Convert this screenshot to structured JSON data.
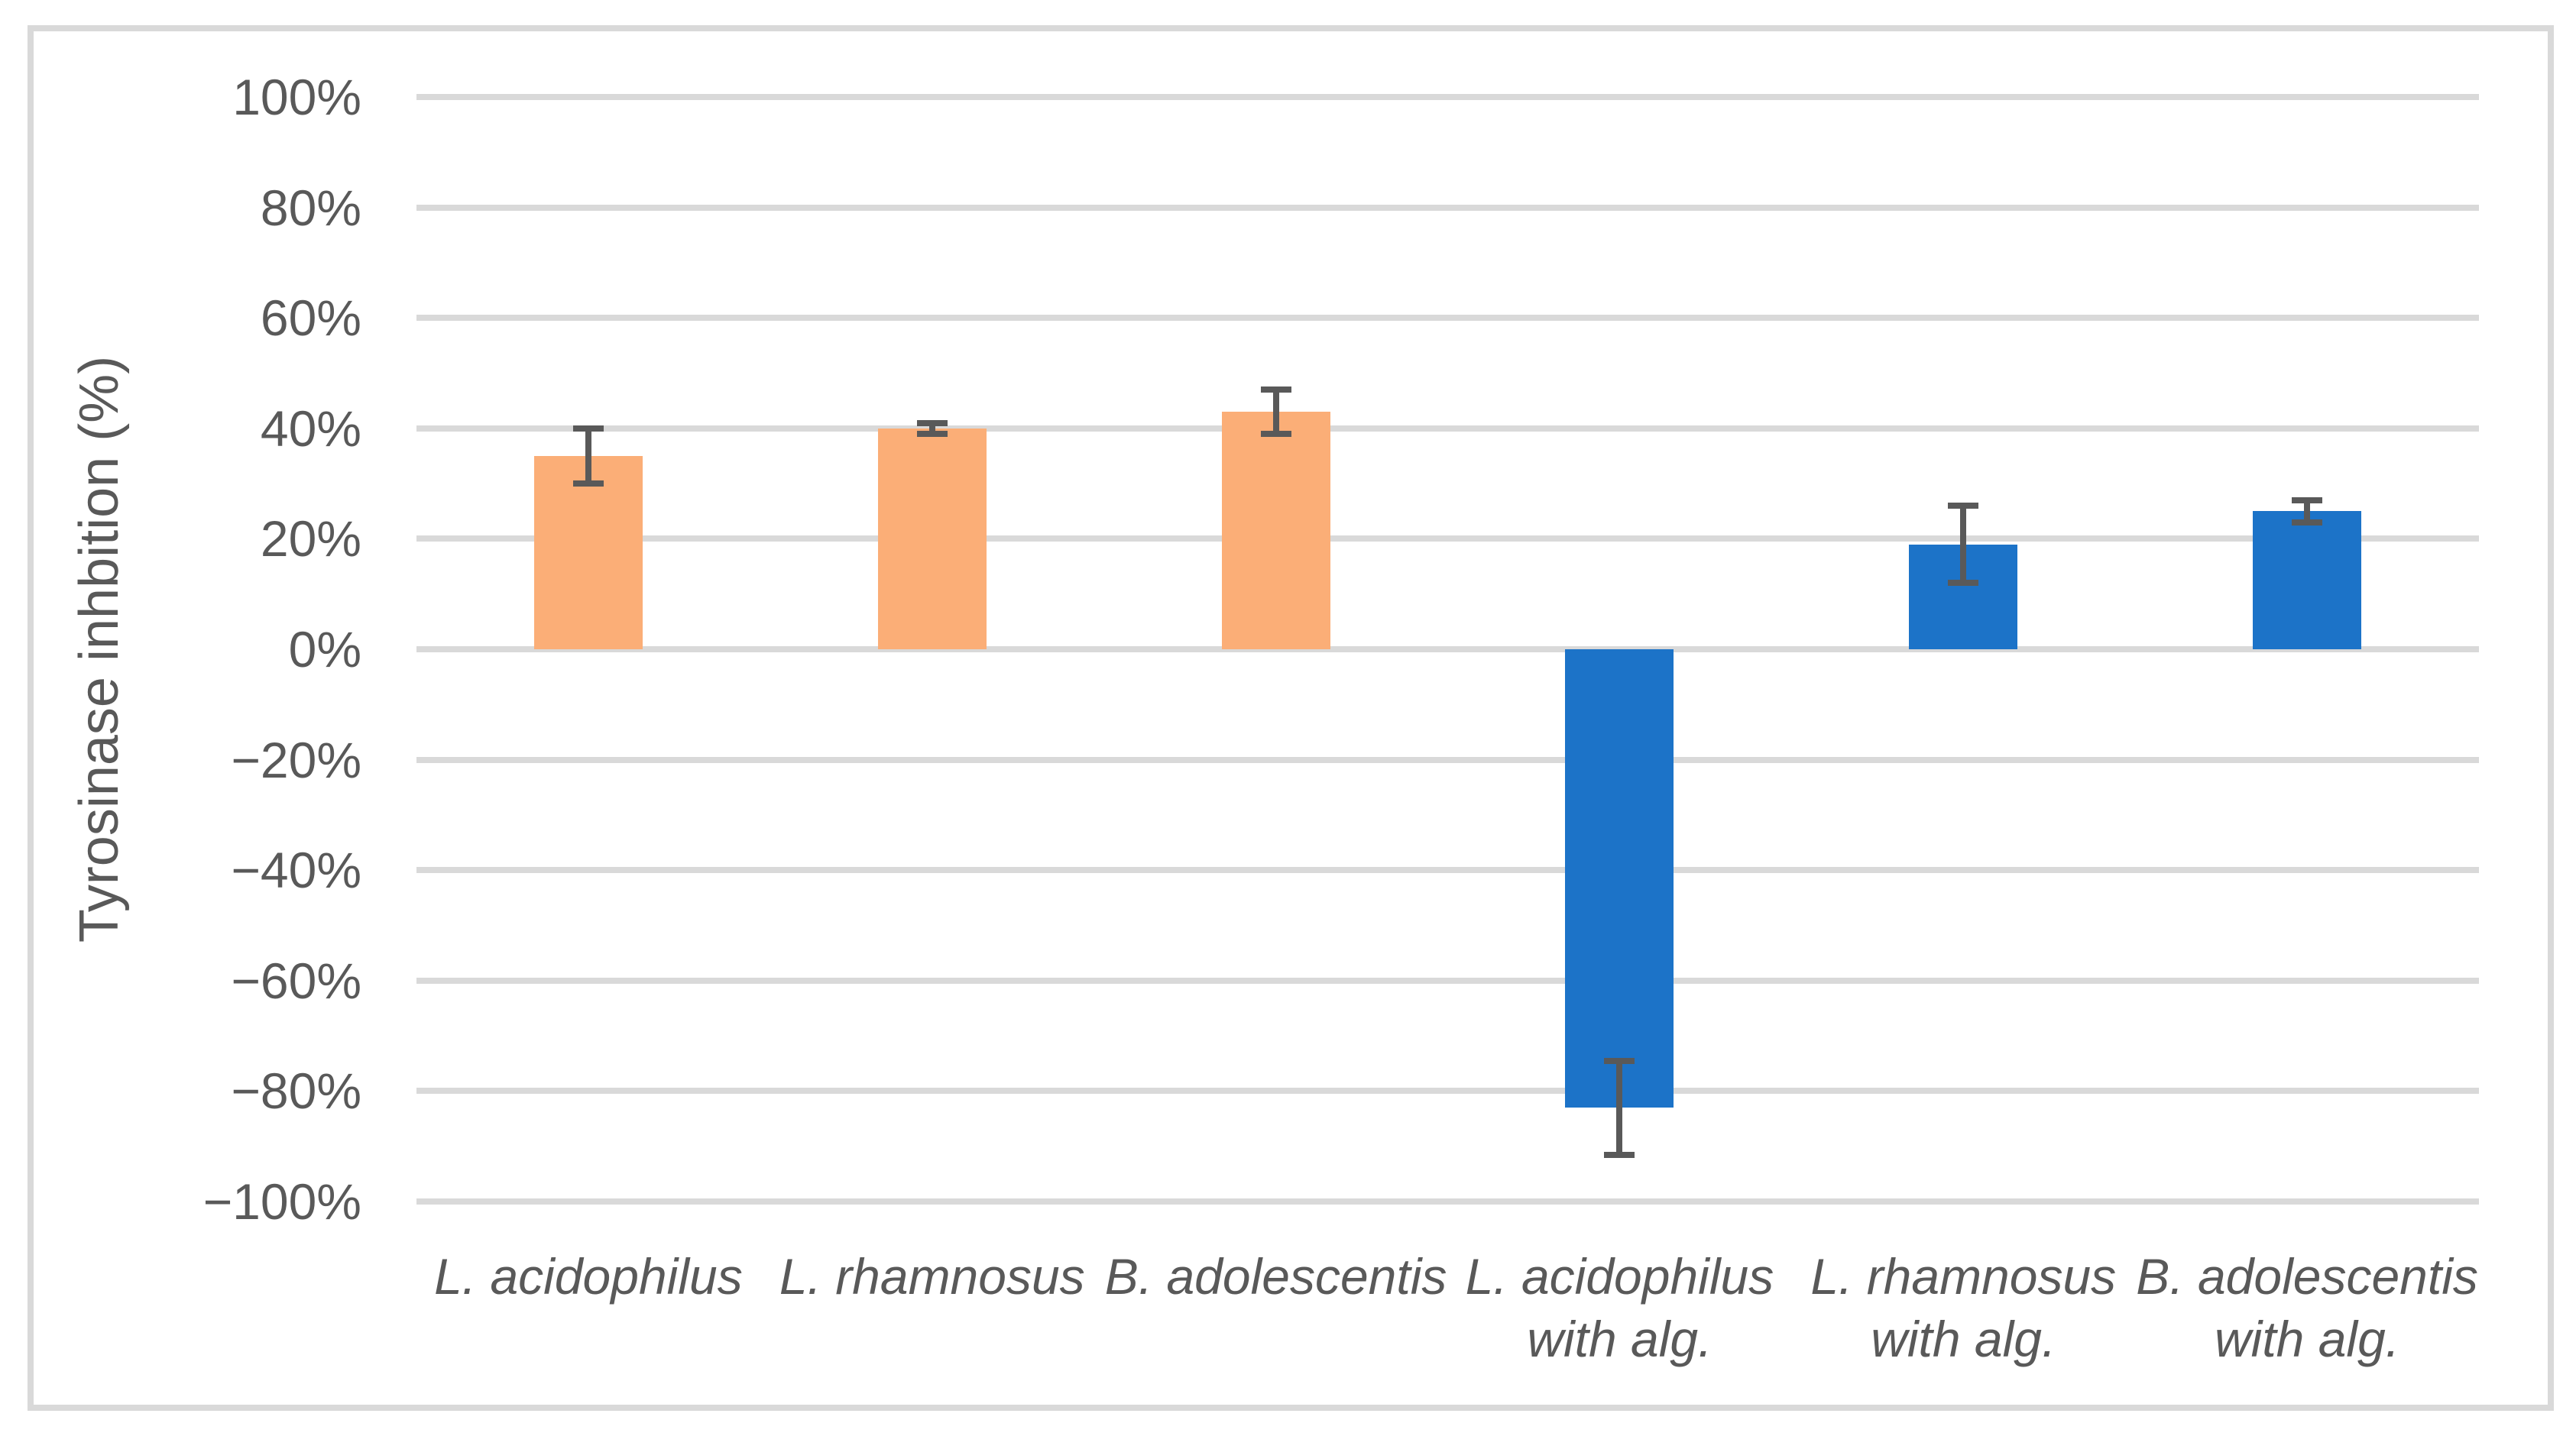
{
  "chart_data": {
    "type": "bar",
    "title": "",
    "ylabel": "Tyrosinase inhbition (%)",
    "xlabel": "",
    "ylim": [
      -100,
      100
    ],
    "ytick_step": 20,
    "yticks": [
      100,
      80,
      60,
      40,
      20,
      0,
      -20,
      -40,
      -60,
      -80,
      -100
    ],
    "ytick_labels": [
      "100%",
      "80%",
      "60%",
      "40%",
      "20%",
      "0%",
      "−20%",
      "−40%",
      "−60%",
      "−80%",
      "−100%"
    ],
    "grid": true,
    "legend": false,
    "categories": [
      "L. acidophilus",
      "L. rhamnosus",
      "B. adolescentis",
      "L. acidophilus\nwith alg.",
      "L. rhamnosus\nwith alg.",
      "B. adolescentis\nwith alg."
    ],
    "values": [
      35,
      40,
      43,
      -83,
      19,
      25
    ],
    "error_bars": [
      5,
      1,
      4,
      8.5,
      7,
      2
    ],
    "bar_colors": [
      "#FBAE77",
      "#FBAE77",
      "#FBAE77",
      "#1C73C8",
      "#1C73C8",
      "#1C73C8"
    ]
  },
  "colors": {
    "bar_orange": "#FBAE77",
    "bar_blue": "#1C73C8",
    "gridline": "#D9D9D9",
    "chart_border": "#D9D9D9",
    "error_bar": "#595959",
    "text": "#595959",
    "background": "#FFFFFF"
  }
}
